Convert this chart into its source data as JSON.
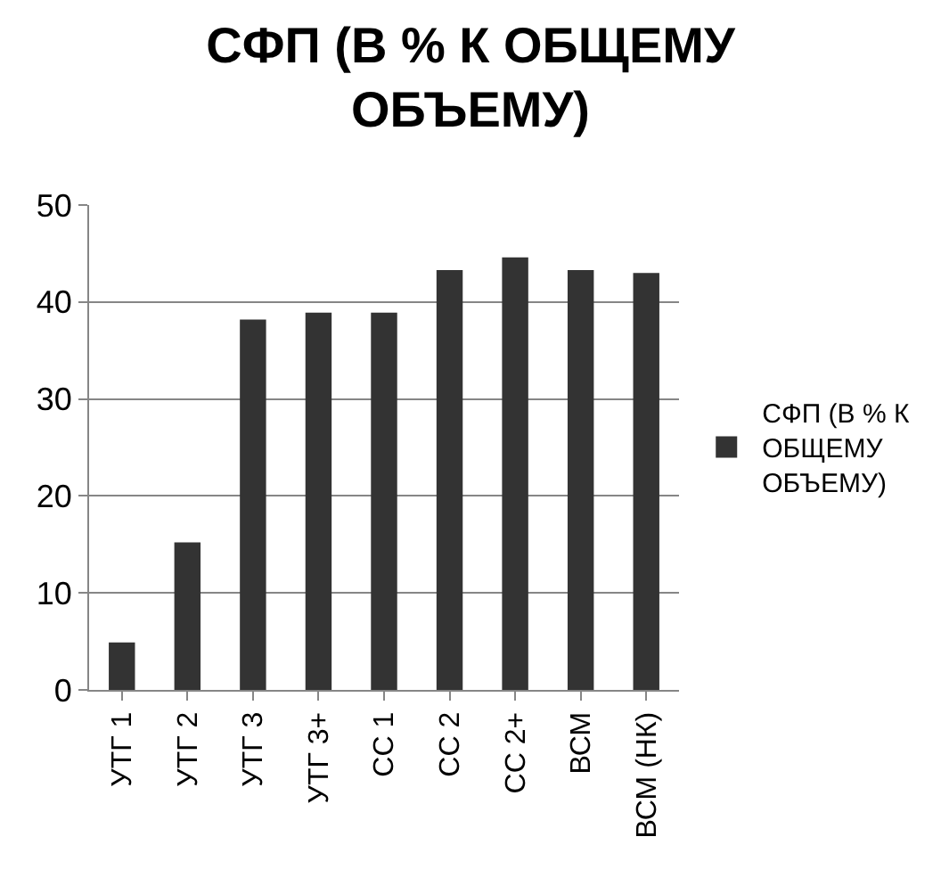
{
  "chart_data": {
    "type": "bar",
    "title": "СФП (В % К ОБЩЕМУ ОБЪЕМУ)",
    "categories": [
      "УТГ 1",
      "УТГ 2",
      "УТГ 3",
      "УТГ 3+",
      "СС 1",
      "СС 2",
      "СС 2+",
      "ВСМ",
      "ВСМ (НК)"
    ],
    "series": [
      {
        "name": "СФП (В % К ОБЩЕМУ ОБЪЕМУ)",
        "color": "#333333",
        "values": [
          4.9,
          15.2,
          38.2,
          38.9,
          38.9,
          43.3,
          44.6,
          43.3,
          43.0
        ]
      }
    ],
    "ylim": [
      0,
      50
    ],
    "yticks": [
      0,
      10,
      20,
      30,
      40,
      50
    ],
    "grid": "y",
    "legend": "right"
  }
}
